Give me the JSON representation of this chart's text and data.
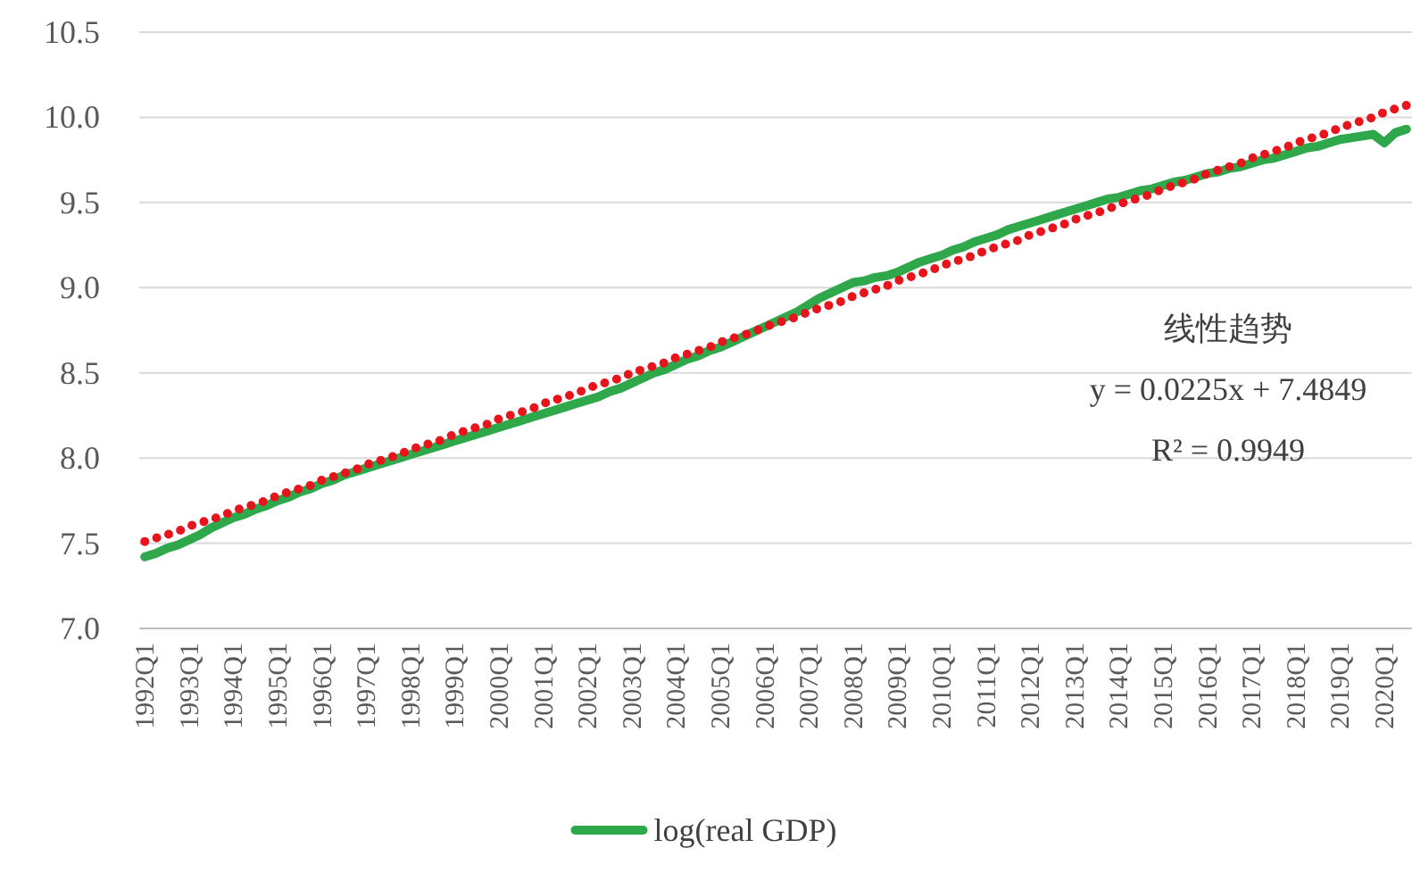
{
  "chart_data": {
    "type": "line",
    "categories": [
      "1992Q1",
      null,
      null,
      null,
      "1993Q1",
      null,
      null,
      null,
      "1994Q1",
      null,
      null,
      null,
      "1995Q1",
      null,
      null,
      null,
      "1996Q1",
      null,
      null,
      null,
      "1997Q1",
      null,
      null,
      null,
      "1998Q1",
      null,
      null,
      null,
      "1999Q1",
      null,
      null,
      null,
      "2000Q1",
      null,
      null,
      null,
      "2001Q1",
      null,
      null,
      null,
      "2002Q1",
      null,
      null,
      null,
      "2003Q1",
      null,
      null,
      null,
      "2004Q1",
      null,
      null,
      null,
      "2005Q1",
      null,
      null,
      null,
      "2006Q1",
      null,
      null,
      null,
      "2007Q1",
      null,
      null,
      null,
      "2008Q1",
      null,
      null,
      null,
      "2009Q1",
      null,
      null,
      null,
      "2010Q1",
      null,
      null,
      null,
      "2011Q1",
      null,
      null,
      null,
      "2012Q1",
      null,
      null,
      null,
      "2013Q1",
      null,
      null,
      null,
      "2014Q1",
      null,
      null,
      null,
      "2015Q1",
      null,
      null,
      null,
      "2016Q1",
      null,
      null,
      null,
      "2017Q1",
      null,
      null,
      null,
      "2018Q1",
      null,
      null,
      null,
      "2019Q1",
      null,
      null,
      null,
      "2020Q1",
      null,
      null
    ],
    "series": [
      {
        "name": "log(real GDP)",
        "color": "#2ea84a",
        "values": [
          7.42,
          7.44,
          7.47,
          7.49,
          7.52,
          7.55,
          7.59,
          7.62,
          7.65,
          7.67,
          7.7,
          7.72,
          7.75,
          7.77,
          7.8,
          7.82,
          7.85,
          7.87,
          7.9,
          7.92,
          7.94,
          7.96,
          7.98,
          8.0,
          8.02,
          8.04,
          8.06,
          8.08,
          8.1,
          8.12,
          8.14,
          8.16,
          8.18,
          8.2,
          8.22,
          8.24,
          8.26,
          8.28,
          8.3,
          8.32,
          8.34,
          8.36,
          8.39,
          8.41,
          8.44,
          8.47,
          8.5,
          8.52,
          8.55,
          8.58,
          8.6,
          8.63,
          8.65,
          8.68,
          8.71,
          8.74,
          8.77,
          8.8,
          8.83,
          8.86,
          8.9,
          8.94,
          8.97,
          9.0,
          9.03,
          9.04,
          9.06,
          9.07,
          9.09,
          9.12,
          9.15,
          9.17,
          9.19,
          9.22,
          9.24,
          9.27,
          9.29,
          9.31,
          9.34,
          9.36,
          9.38,
          9.4,
          9.42,
          9.44,
          9.46,
          9.48,
          9.5,
          9.52,
          9.53,
          9.55,
          9.57,
          9.58,
          9.6,
          9.62,
          9.63,
          9.65,
          9.67,
          9.68,
          9.7,
          9.71,
          9.73,
          9.75,
          9.76,
          9.78,
          9.8,
          9.82,
          9.83,
          9.85,
          9.87,
          9.88,
          9.89,
          9.9,
          9.85,
          9.91,
          9.93
        ]
      },
      {
        "type": "line",
        "line_style": "dotted",
        "color": "#e8141c",
        "values": [
          7.51,
          7.53,
          7.55,
          7.57,
          7.6,
          7.62,
          7.64,
          7.66,
          7.69,
          7.71,
          7.73,
          7.75,
          7.78,
          7.8,
          7.82,
          7.84,
          7.87,
          7.89,
          7.91,
          7.93,
          7.96,
          7.98,
          8.0,
          8.02,
          8.05,
          8.07,
          8.09,
          8.11,
          8.14,
          8.16,
          8.18,
          8.2,
          8.23,
          8.25,
          8.27,
          8.29,
          8.32,
          8.34,
          8.36,
          8.38,
          8.41,
          8.43,
          8.45,
          8.47,
          8.5,
          8.52,
          8.54,
          8.56,
          8.59,
          8.61,
          8.63,
          8.65,
          8.68,
          8.7,
          8.72,
          8.74,
          8.77,
          8.79,
          8.81,
          8.83,
          8.86,
          8.88,
          8.9,
          8.92,
          8.95,
          8.97,
          8.99,
          9.01,
          9.04,
          9.06,
          9.08,
          9.1,
          9.13,
          9.15,
          9.17,
          9.19,
          9.22,
          9.24,
          9.26,
          9.28,
          9.31,
          9.33,
          9.35,
          9.37,
          9.4,
          9.42,
          9.44,
          9.46,
          9.49,
          9.51,
          9.53,
          9.55,
          9.58,
          9.6,
          9.62,
          9.64,
          9.67,
          9.69,
          9.71,
          9.73,
          9.76,
          9.78,
          9.8,
          9.82,
          9.85,
          9.87,
          9.89,
          9.91,
          9.94,
          9.96,
          9.98,
          10.0,
          10.03,
          10.05,
          10.07
        ]
      }
    ],
    "ylim": [
      7,
      10.5
    ],
    "yticks": [
      {
        "value": 7,
        "label": "7.0"
      },
      {
        "value": 7.5,
        "label": "7.5"
      },
      {
        "value": 8,
        "label": "8.0"
      },
      {
        "value": 8.5,
        "label": "8.5"
      },
      {
        "value": 9,
        "label": "9.0"
      },
      {
        "value": 9.5,
        "label": "9.5"
      },
      {
        "value": 10,
        "label": "10.0"
      },
      {
        "value": 10.5,
        "label": "10.5"
      }
    ],
    "grid": "y",
    "legend": "bottom",
    "annotations": [
      "线性趋势",
      "y = 0.0225x + 7.4849",
      "R² = 0.9949"
    ]
  }
}
